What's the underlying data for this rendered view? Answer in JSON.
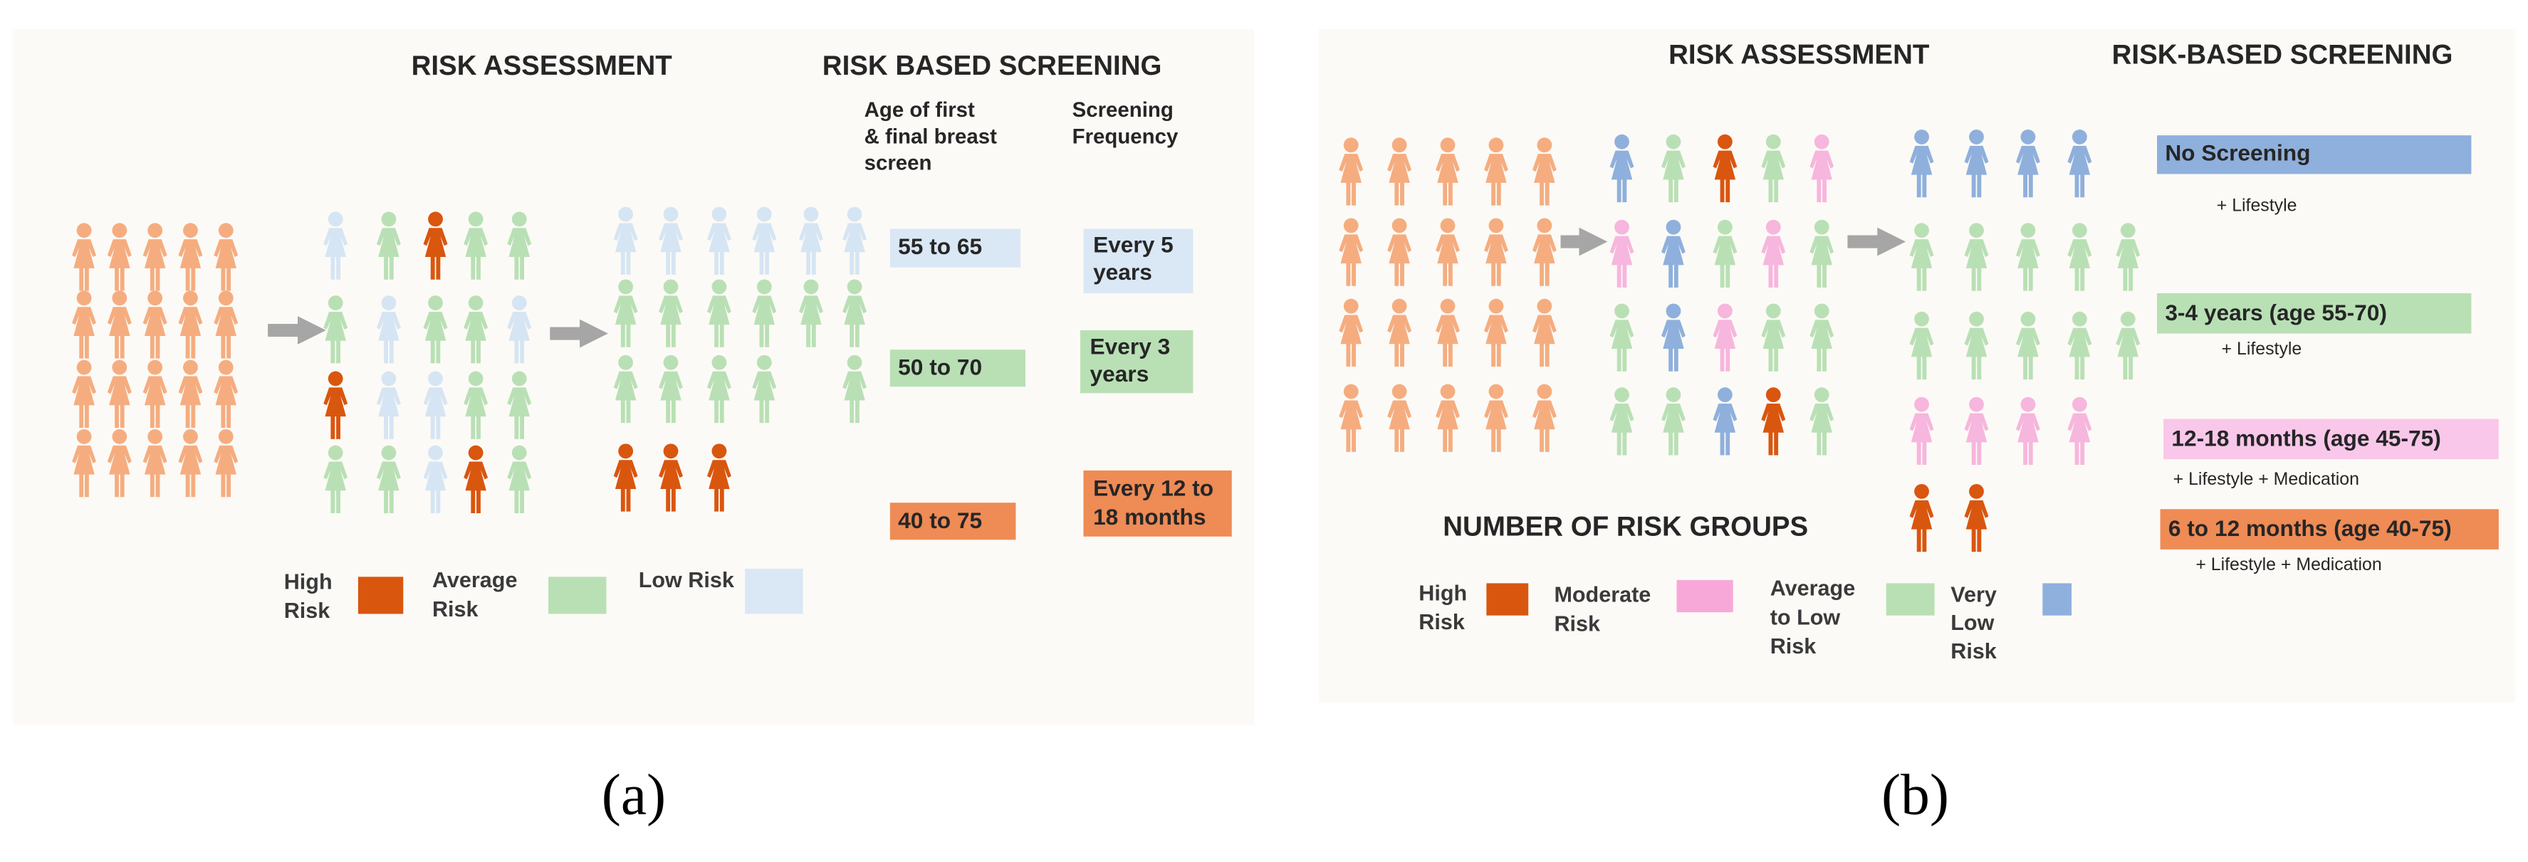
{
  "panel_a": {
    "headings": [
      "RISK ASSESSMENT",
      "RISK BASED SCREENING"
    ],
    "column_headers": [
      [
        "Age of first",
        "& final breast",
        "screen"
      ],
      [
        "Screening",
        "Frequency"
      ]
    ],
    "age_ranges": [
      "55 to 65",
      "50 to 70",
      "40 to 75"
    ],
    "frequencies": [
      [
        "Every 5",
        "years"
      ],
      [
        "Every 3",
        "years"
      ],
      [
        "Every 12 to",
        "18 months"
      ]
    ],
    "legend": [
      [
        "High",
        "Risk"
      ],
      [
        "Average",
        "Risk"
      ],
      [
        "Low Risk"
      ]
    ],
    "caption": "(a)"
  },
  "panel_b": {
    "headings": [
      "RISK ASSESSMENT",
      "RISK-BASED SCREENING"
    ],
    "screening": [
      {
        "label": "No Screening",
        "note": "+ Lifestyle"
      },
      {
        "label": "3-4 years (age 55-70)",
        "note": "+ Lifestyle"
      },
      {
        "label": "12-18 months (age 45-75)",
        "note": "+ Lifestyle + Medication"
      },
      {
        "label": "6 to 12 months (age 40-75)",
        "note": "+ Lifestyle + Medication"
      }
    ],
    "groups_title": "NUMBER OF RISK GROUPS",
    "legend": [
      [
        "High",
        "Risk"
      ],
      [
        "Moderate",
        "Risk"
      ],
      [
        "Average",
        "to Low",
        "Risk"
      ],
      [
        "Very",
        "Low",
        "Risk"
      ]
    ],
    "caption": "(b)"
  }
}
